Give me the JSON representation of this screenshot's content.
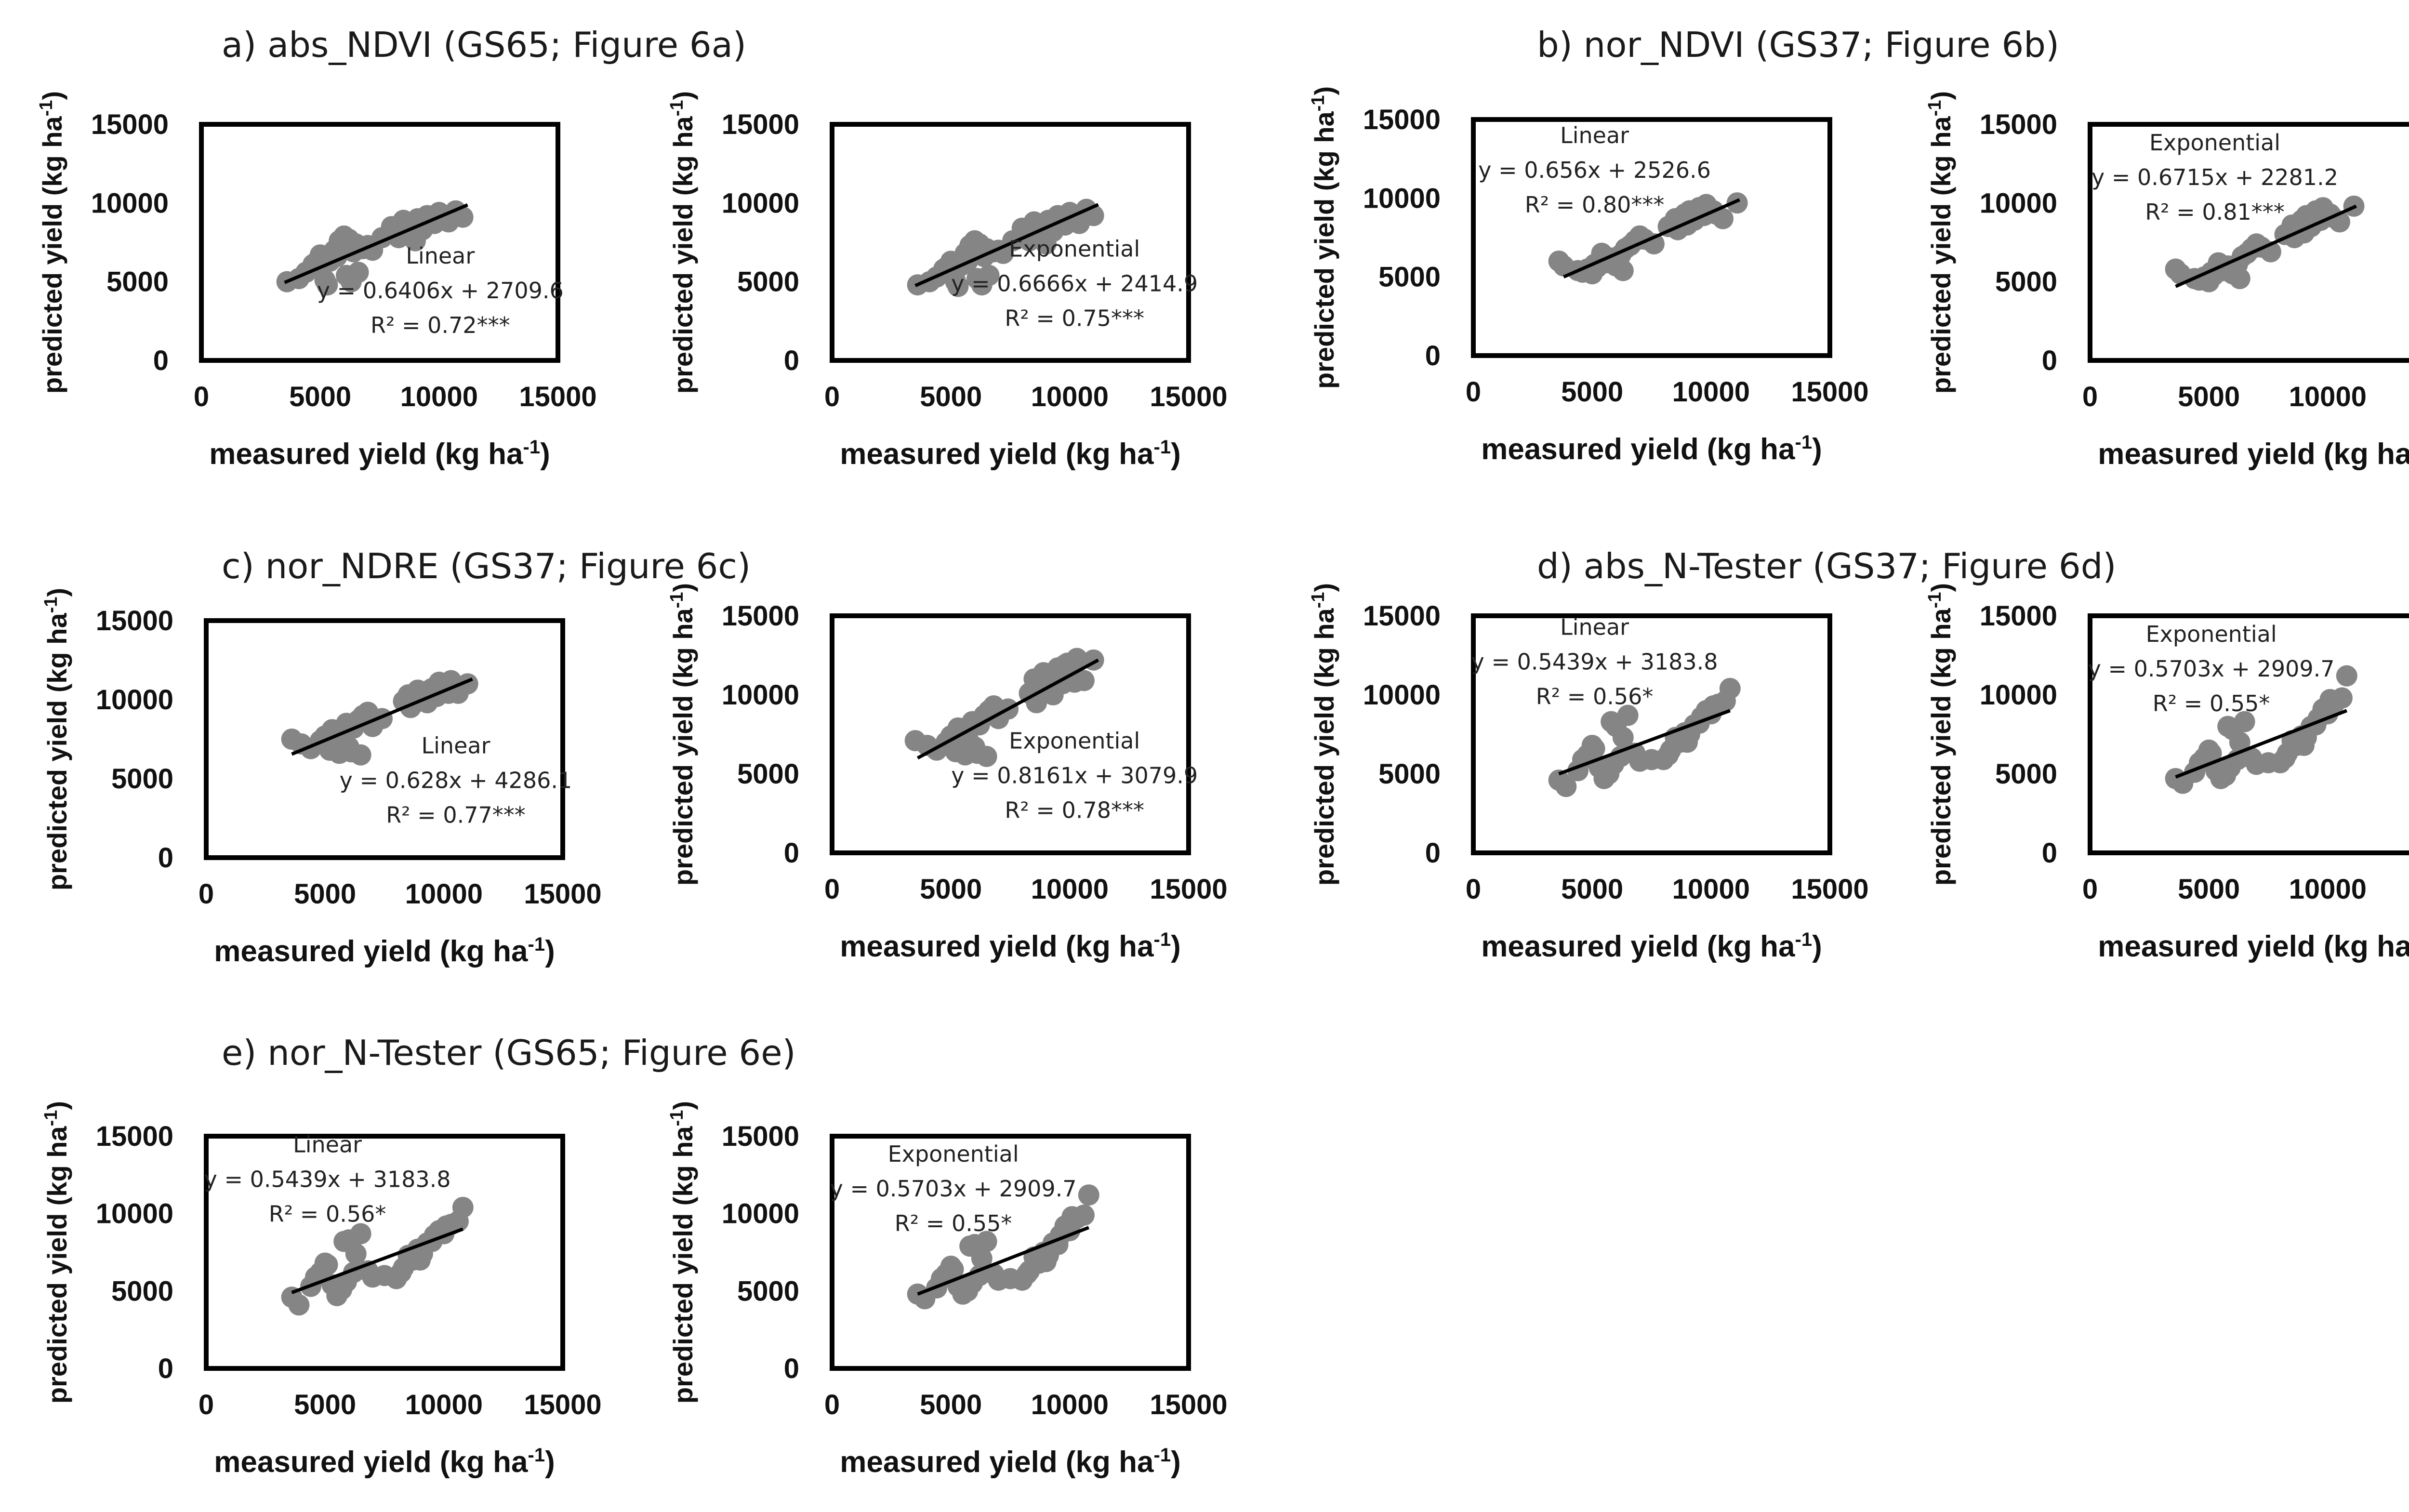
{
  "chart_data": {
    "type": "scatter",
    "axis_common": {
      "xlabel": "measured yield (kg ha",
      "ylabel": "predicted yield (kg ha",
      "unit_sup": "-1",
      "xlim": [
        0,
        15000
      ],
      "ylim": [
        0,
        15000
      ],
      "xticks": [
        "0",
        "5000",
        "10000",
        "15000"
      ],
      "yticks": [
        "0",
        "5000",
        "10000",
        "15000"
      ],
      "grid": false,
      "point_color": "#858585",
      "line_color": "#000000"
    },
    "groups": [
      {
        "title": "a) abs_NDVI (GS65; Figure 6a)"
      },
      {
        "title": "b) nor_NDVI (GS37; Figure 6b)"
      },
      {
        "title": "c) nor_NDRE (GS37; Figure 6c)"
      },
      {
        "title": "d) abs_N-Tester (GS37; Figure 6d)"
      },
      {
        "title": "e) nor_N-Tester (GS65; Figure 6e)"
      }
    ],
    "panels": [
      {
        "model": "Linear",
        "equation": "y = 0.6406x + 2709.6",
        "r2": "R² = 0.72***",
        "fit": {
          "x": [
            3500,
            11200
          ],
          "y": [
            4950,
            9880
          ]
        },
        "x": [
          3600,
          4100,
          4400,
          4700,
          5000,
          5200,
          5400,
          5600,
          5800,
          5900,
          6000,
          6200,
          6400,
          6500,
          6800,
          7000,
          7200,
          5300,
          4800,
          5700,
          6100,
          6300,
          6600,
          8000,
          8300,
          8500,
          8700,
          8900,
          9100,
          9300,
          9500,
          9800,
          10000,
          10400,
          10700,
          11000,
          8200,
          9000,
          9600,
          7600
        ],
        "y": [
          5000,
          5200,
          5600,
          6100,
          6700,
          5100,
          6300,
          7000,
          7600,
          7200,
          7900,
          7700,
          6900,
          7400,
          7100,
          7300,
          7000,
          4800,
          6200,
          6600,
          5400,
          5000,
          5600,
          8500,
          7800,
          8900,
          8200,
          8600,
          9000,
          8300,
          9200,
          8700,
          9400,
          8800,
          9500,
          9100,
          8000,
          7600,
          9000,
          7800
        ]
      },
      {
        "model": "Exponential",
        "equation": "y = 0.6666x + 2414.9",
        "r2": "R² = 0.75***",
        "fit": {
          "x": [
            3500,
            11200
          ],
          "y": [
            4750,
            9900
          ]
        },
        "x": [
          3600,
          4100,
          4400,
          4700,
          5000,
          5200,
          5400,
          5600,
          5800,
          5900,
          6000,
          6200,
          6400,
          6500,
          6800,
          7000,
          7200,
          5300,
          4800,
          5700,
          6100,
          6300,
          6600,
          8000,
          8300,
          8500,
          8700,
          8900,
          9100,
          9300,
          9500,
          9800,
          10000,
          10400,
          10700,
          11000,
          8200,
          9000,
          9600,
          7600
        ],
        "y": [
          4800,
          5000,
          5300,
          5800,
          6300,
          5000,
          6000,
          6800,
          7300,
          6900,
          7600,
          7400,
          6600,
          7100,
          6900,
          7000,
          6800,
          4700,
          5900,
          6300,
          5200,
          4800,
          5400,
          8400,
          7600,
          8800,
          8000,
          8400,
          8900,
          8200,
          9200,
          8600,
          9400,
          8700,
          9600,
          9200,
          7900,
          7400,
          9000,
          7600
        ]
      },
      {
        "model": "Linear",
        "equation": "y = 0.656x + 2526.6",
        "r2": "R² = 0.80***",
        "fit": {
          "x": [
            3800,
            11200
          ],
          "y": [
            5000,
            9900
          ]
        },
        "x": [
          3600,
          3800,
          4400,
          4800,
          5100,
          5400,
          5600,
          5800,
          6000,
          6200,
          6400,
          6600,
          6800,
          7000,
          4600,
          5200,
          5900,
          6300,
          8200,
          8500,
          8700,
          8900,
          9100,
          9300,
          9500,
          9700,
          9900,
          10200,
          10500,
          11100,
          8600,
          9000,
          9400,
          9800,
          10100,
          7200,
          7600,
          5000
        ],
        "y": [
          6000,
          5700,
          5400,
          5500,
          5800,
          6500,
          5900,
          6200,
          5700,
          6400,
          6800,
          7000,
          7300,
          7600,
          5300,
          5600,
          6000,
          5400,
          8200,
          8700,
          8400,
          9000,
          9200,
          8600,
          9400,
          8900,
          9100,
          9000,
          8700,
          9700,
          8000,
          8300,
          8800,
          9600,
          9200,
          7400,
          7100,
          5200
        ]
      },
      {
        "model": "Exponential",
        "equation": "y = 0.6715x + 2281.2",
        "r2": "R² = 0.81***",
        "fit": {
          "x": [
            3600,
            11200
          ],
          "y": [
            4700,
            9800
          ]
        },
        "x": [
          3600,
          3800,
          4400,
          4800,
          5100,
          5400,
          5600,
          5800,
          6000,
          6200,
          6400,
          6600,
          6800,
          7000,
          4600,
          5200,
          5900,
          6300,
          8200,
          8500,
          8700,
          8900,
          9100,
          9300,
          9500,
          9700,
          9900,
          10200,
          10500,
          11100,
          8600,
          9000,
          9400,
          9800,
          10100,
          7200,
          7600,
          5000
        ],
        "y": [
          5800,
          5500,
          5200,
          5300,
          5600,
          6200,
          5700,
          6000,
          5500,
          6100,
          6600,
          6800,
          7100,
          7400,
          5100,
          5400,
          5800,
          5200,
          8000,
          8600,
          8200,
          8900,
          9200,
          8500,
          9500,
          8900,
          9200,
          9100,
          8800,
          9800,
          7800,
          8100,
          8700,
          9700,
          9300,
          7200,
          6900,
          5000
        ]
      },
      {
        "model": "Linear",
        "equation": "y = 0.628x + 4286.1",
        "r2": "R² = 0.77***",
        "fit": {
          "x": [
            3600,
            11200
          ],
          "y": [
            6550,
            11300
          ]
        },
        "x": [
          3600,
          4000,
          4400,
          4800,
          5000,
          5300,
          5500,
          5700,
          5900,
          6000,
          6200,
          6400,
          6600,
          6800,
          5200,
          5600,
          6100,
          6500,
          8300,
          8500,
          8700,
          8900,
          9100,
          9300,
          9500,
          9700,
          9900,
          10100,
          10300,
          10600,
          11000,
          8600,
          9000,
          9400,
          9800,
          10200,
          7000,
          7400
        ],
        "y": [
          7500,
          7200,
          6900,
          7400,
          7700,
          8100,
          7200,
          7600,
          8500,
          7000,
          8200,
          8700,
          9000,
          9200,
          6800,
          6600,
          6700,
          6500,
          9900,
          10300,
          9700,
          10600,
          10100,
          9800,
          10700,
          10200,
          10900,
          10500,
          11200,
          10400,
          11000,
          9500,
          10000,
          10600,
          11100,
          10400,
          8300,
          8800
        ]
      },
      {
        "model": "Exponential",
        "equation": "y = 0.8161x + 3079.9",
        "r2": "R² = 0.78***",
        "fit": {
          "x": [
            3600,
            11200
          ],
          "y": [
            6000,
            12200
          ]
        },
        "x": [
          3500,
          4000,
          4400,
          4800,
          5000,
          5300,
          5500,
          5700,
          5900,
          6000,
          6200,
          6400,
          6600,
          6800,
          5200,
          5600,
          6100,
          6500,
          8300,
          8500,
          8700,
          8900,
          9100,
          9300,
          9500,
          9700,
          9900,
          10100,
          10300,
          10600,
          11000,
          8600,
          9000,
          9400,
          9800,
          10200,
          7000,
          7400
        ],
        "y": [
          7100,
          6800,
          6500,
          7000,
          7400,
          7900,
          6900,
          7300,
          8300,
          6700,
          8100,
          8700,
          9000,
          9300,
          6400,
          6200,
          6300,
          6100,
          10100,
          11000,
          9900,
          11400,
          10600,
          10000,
          11700,
          10700,
          12000,
          11100,
          12300,
          10900,
          12200,
          9500,
          10200,
          11300,
          11900,
          10800,
          8500,
          9100
        ]
      },
      {
        "model": "Linear",
        "equation": "y = 0.5439x + 3183.8",
        "r2": "R² = 0.56*",
        "fit": {
          "x": [
            3600,
            10800
          ],
          "y": [
            5000,
            9000
          ]
        },
        "x": [
          3600,
          3900,
          4400,
          4800,
          5000,
          5300,
          5500,
          5700,
          5900,
          6000,
          6200,
          6500,
          6800,
          7000,
          4600,
          5100,
          5800,
          6300,
          8000,
          8300,
          8500,
          8700,
          8900,
          9100,
          9300,
          9600,
          9800,
          10000,
          10300,
          10600,
          10800,
          8200,
          9000,
          9500,
          10100,
          7500
        ],
        "y": [
          4600,
          4200,
          5200,
          6200,
          6800,
          5400,
          4700,
          5000,
          5600,
          8000,
          6100,
          8700,
          6300,
          5800,
          5900,
          6600,
          8300,
          7300,
          5900,
          6500,
          7300,
          7000,
          7600,
          7500,
          8100,
          8600,
          9000,
          8800,
          9400,
          9600,
          10400,
          6200,
          7000,
          8200,
          9300,
          5900
        ]
      },
      {
        "model": "Exponential",
        "equation": "y = 0.5703x + 2909.7",
        "r2": "R² = 0.55*",
        "fit": {
          "x": [
            3600,
            10800
          ],
          "y": [
            4800,
            9000
          ]
        },
        "x": [
          3600,
          3900,
          4400,
          4800,
          5000,
          5300,
          5500,
          5700,
          5900,
          6000,
          6200,
          6500,
          6800,
          7000,
          4600,
          5100,
          5800,
          6300,
          8000,
          8300,
          8500,
          8700,
          8900,
          9100,
          9300,
          9600,
          9800,
          10000,
          10300,
          10600,
          10800,
          8200,
          9000,
          9500,
          10100,
          7500
        ],
        "y": [
          4700,
          4400,
          5100,
          6000,
          6500,
          5200,
          4700,
          4900,
          5400,
          7800,
          5900,
          8300,
          6000,
          5600,
          5700,
          6300,
          8000,
          7000,
          5700,
          6300,
          7100,
          6800,
          7400,
          7300,
          8000,
          8500,
          9100,
          8800,
          9500,
          9800,
          11200,
          6000,
          6800,
          8100,
          9700,
          5700
        ]
      },
      {
        "model": "Linear",
        "equation": "y = 0.5439x + 3183.8",
        "r2": "R² = 0.56*",
        "fit": {
          "x": [
            3600,
            10800
          ],
          "y": [
            4900,
            9000
          ]
        },
        "x": [
          3600,
          3900,
          4400,
          4800,
          5000,
          5300,
          5500,
          5700,
          5900,
          6000,
          6200,
          6500,
          6800,
          7000,
          4600,
          5100,
          5800,
          6300,
          8000,
          8300,
          8500,
          8700,
          8900,
          9100,
          9300,
          9600,
          9800,
          10000,
          10300,
          10600,
          10800,
          8200,
          9000,
          9500,
          10100,
          7500
        ],
        "y": [
          4600,
          4100,
          5300,
          6200,
          6800,
          5400,
          4700,
          5100,
          5600,
          8300,
          6200,
          8700,
          6300,
          5900,
          5900,
          6700,
          8200,
          7400,
          5800,
          6500,
          7300,
          7000,
          7700,
          7400,
          8100,
          8600,
          8900,
          8700,
          9300,
          9500,
          10400,
          6200,
          7000,
          8200,
          9200,
          6000
        ]
      },
      {
        "model": "Exponential",
        "equation": "y = 0.5703x + 2909.7",
        "r2": "R² = 0.55*",
        "fit": {
          "x": [
            3600,
            10800
          ],
          "y": [
            4800,
            9100
          ]
        },
        "x": [
          3600,
          3900,
          4400,
          4800,
          5000,
          5300,
          5500,
          5700,
          5900,
          6000,
          6200,
          6500,
          6800,
          7000,
          4600,
          5100,
          5800,
          6300,
          8000,
          8300,
          8500,
          8700,
          8900,
          9100,
          9300,
          9600,
          9800,
          10000,
          10300,
          10600,
          10800,
          8200,
          9000,
          9500,
          10100,
          7500
        ],
        "y": [
          4800,
          4500,
          5200,
          6100,
          6600,
          5300,
          4800,
          5000,
          5500,
          8000,
          6000,
          8200,
          6100,
          5700,
          5800,
          6400,
          7900,
          7100,
          5700,
          6300,
          7200,
          6800,
          7500,
          7300,
          8100,
          8600,
          9200,
          8900,
          9700,
          9900,
          11200,
          6100,
          6900,
          8000,
          9800,
          5800
        ]
      }
    ]
  }
}
